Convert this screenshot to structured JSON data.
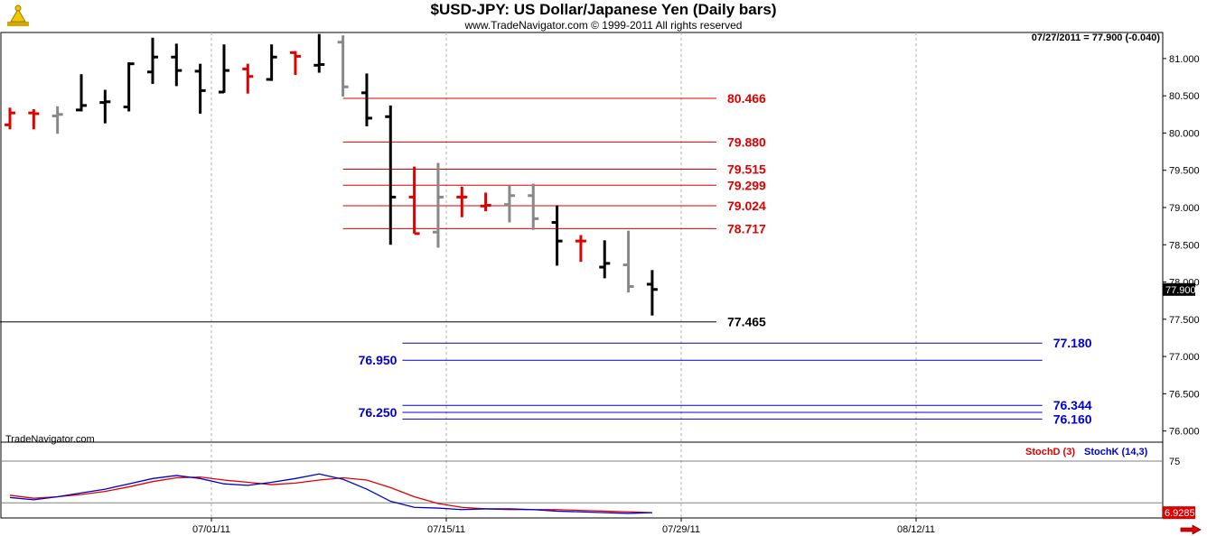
{
  "chart_data": {
    "type": "bar",
    "title": "$USD-JPY:  US Dollar/Japanese Yen  (Daily bars)",
    "copyright": "www.TradeNavigator.com © 1999-2011 All rights reserved",
    "quote": "07/27/2011 = 77.900 (-0.040)",
    "brand": "TradeNavigator.com",
    "price_axis": {
      "ylim": [
        75.85,
        81.35
      ],
      "ticks": [
        "81.000",
        "80.500",
        "80.000",
        "79.500",
        "79.000",
        "78.500",
        "78.000",
        "77.500",
        "77.000",
        "76.500",
        "76.000"
      ],
      "last_price_label": "77.900"
    },
    "date_axis": {
      "ticks": [
        "07/01/11",
        "07/15/11",
        "07/29/11",
        "08/12/11"
      ]
    },
    "colors": {
      "black": "#000000",
      "red": "#e00000",
      "gray": "#888888",
      "blue": "#0000cc"
    },
    "bars": [
      {
        "o": 80.11,
        "h": 80.34,
        "l": 80.05,
        "c": 80.27,
        "color": "red"
      },
      {
        "o": 80.27,
        "h": 80.32,
        "l": 80.05,
        "c": 80.26,
        "color": "red"
      },
      {
        "o": 80.23,
        "h": 80.36,
        "l": 79.99,
        "c": 80.25,
        "color": "gray"
      },
      {
        "o": 80.31,
        "h": 80.79,
        "l": 80.29,
        "c": 80.37,
        "color": "black"
      },
      {
        "o": 80.41,
        "h": 80.58,
        "l": 80.13,
        "c": 80.42,
        "color": "black"
      },
      {
        "o": 80.35,
        "h": 80.95,
        "l": 80.29,
        "c": 80.93,
        "color": "black"
      },
      {
        "o": 80.82,
        "h": 81.28,
        "l": 80.66,
        "c": 81.02,
        "color": "black"
      },
      {
        "o": 81.02,
        "h": 81.2,
        "l": 80.63,
        "c": 80.84,
        "color": "black"
      },
      {
        "o": 80.83,
        "h": 80.93,
        "l": 80.26,
        "c": 80.57,
        "color": "black"
      },
      {
        "o": 80.55,
        "h": 81.19,
        "l": 80.54,
        "c": 80.84,
        "color": "black"
      },
      {
        "o": 80.86,
        "h": 80.93,
        "l": 80.53,
        "c": 80.76,
        "color": "red"
      },
      {
        "o": 80.72,
        "h": 81.19,
        "l": 80.7,
        "c": 81.02,
        "color": "black"
      },
      {
        "o": 81.08,
        "h": 81.1,
        "l": 80.78,
        "c": 81.03,
        "color": "red"
      },
      {
        "o": 80.91,
        "h": 81.33,
        "l": 80.81,
        "c": 80.92,
        "color": "black"
      },
      {
        "o": 81.22,
        "h": 81.31,
        "l": 80.49,
        "c": 80.62,
        "color": "gray"
      },
      {
        "o": 80.54,
        "h": 80.8,
        "l": 80.09,
        "c": 80.2,
        "color": "black"
      },
      {
        "o": 80.22,
        "h": 80.37,
        "l": 78.5,
        "c": 79.14,
        "color": "black"
      },
      {
        "o": 79.14,
        "h": 79.55,
        "l": 78.65,
        "c": 78.65,
        "color": "red"
      },
      {
        "o": 78.67,
        "h": 79.6,
        "l": 78.46,
        "c": 79.14,
        "color": "gray"
      },
      {
        "o": 79.14,
        "h": 79.28,
        "l": 78.87,
        "c": 79.14,
        "color": "red"
      },
      {
        "o": 79.02,
        "h": 79.2,
        "l": 78.95,
        "c": 79.03,
        "color": "red"
      },
      {
        "o": 79.04,
        "h": 79.29,
        "l": 78.8,
        "c": 79.16,
        "color": "gray"
      },
      {
        "o": 79.16,
        "h": 79.32,
        "l": 78.7,
        "c": 78.85,
        "color": "gray"
      },
      {
        "o": 78.8,
        "h": 79.03,
        "l": 78.22,
        "c": 78.55,
        "color": "black"
      },
      {
        "o": 78.55,
        "h": 78.63,
        "l": 78.27,
        "c": 78.55,
        "color": "red"
      },
      {
        "o": 78.2,
        "h": 78.56,
        "l": 78.05,
        "c": 78.25,
        "color": "black"
      },
      {
        "o": 78.23,
        "h": 78.69,
        "l": 77.86,
        "c": 77.94,
        "color": "gray"
      },
      {
        "o": 77.97,
        "h": 78.16,
        "l": 77.55,
        "c": 77.9,
        "color": "black"
      }
    ],
    "levels": [
      {
        "value": 80.466,
        "label": "80.466",
        "color": "red",
        "label_side": "right",
        "from_bar": 14,
        "to_bar": 29.7
      },
      {
        "value": 79.88,
        "label": "79.880",
        "color": "red",
        "label_side": "right",
        "from_bar": 14,
        "to_bar": 29.7
      },
      {
        "value": 79.515,
        "label": "79.515",
        "color": "red",
        "label_side": "right",
        "from_bar": 14,
        "to_bar": 29.7
      },
      {
        "value": 79.299,
        "label": "79.299",
        "color": "red",
        "label_side": "right",
        "from_bar": 14,
        "to_bar": 29.7
      },
      {
        "value": 79.024,
        "label": "79.024",
        "color": "red",
        "label_side": "right",
        "from_bar": 14,
        "to_bar": 29.7
      },
      {
        "value": 78.717,
        "label": "78.717",
        "color": "red",
        "label_side": "right",
        "from_bar": 14,
        "to_bar": 29.7
      },
      {
        "value": 77.465,
        "label": "77.465",
        "color": "black",
        "label_side": "right",
        "from_bar": -1.6,
        "to_bar": 29.7
      },
      {
        "value": 77.18,
        "label": "77.180",
        "color": "blue",
        "label_side": "right",
        "from_bar": 16.5,
        "to_bar": 43.4
      },
      {
        "value": 76.95,
        "label": "76.950",
        "color": "blue",
        "label_side": "left",
        "from_bar": 16.5,
        "to_bar": 43.4
      },
      {
        "value": 76.344,
        "label": "76.344",
        "color": "blue",
        "label_side": "right",
        "from_bar": 16.5,
        "to_bar": 43.4
      },
      {
        "value": 76.25,
        "label": "76.250",
        "color": "blue",
        "label_side": "left",
        "from_bar": 16.5,
        "to_bar": 43.4
      },
      {
        "value": 76.16,
        "label": "76.160",
        "color": "blue",
        "label_side": "right",
        "from_bar": 16.5,
        "to_bar": 43.4
      }
    ],
    "stochastic": {
      "ylim": [
        0,
        100
      ],
      "tick_label": "75",
      "last_value_label": "6.9285",
      "series": [
        {
          "name": "StochD (3)",
          "color": "red",
          "values": [
            30,
            26,
            28,
            31,
            35,
            41,
            48,
            53,
            54,
            50,
            47,
            44,
            46,
            50,
            53,
            50,
            40,
            28,
            19,
            14,
            12,
            11,
            11,
            11,
            10,
            9,
            8,
            7
          ]
        },
        {
          "name": "StochK (14,3)",
          "color": "blue",
          "values": [
            27,
            24,
            28,
            33,
            38,
            45,
            52,
            56,
            52,
            45,
            43,
            47,
            52,
            58,
            51,
            38,
            22,
            14,
            13,
            11,
            12,
            12,
            11,
            9,
            8,
            7,
            6,
            7
          ]
        }
      ]
    }
  }
}
